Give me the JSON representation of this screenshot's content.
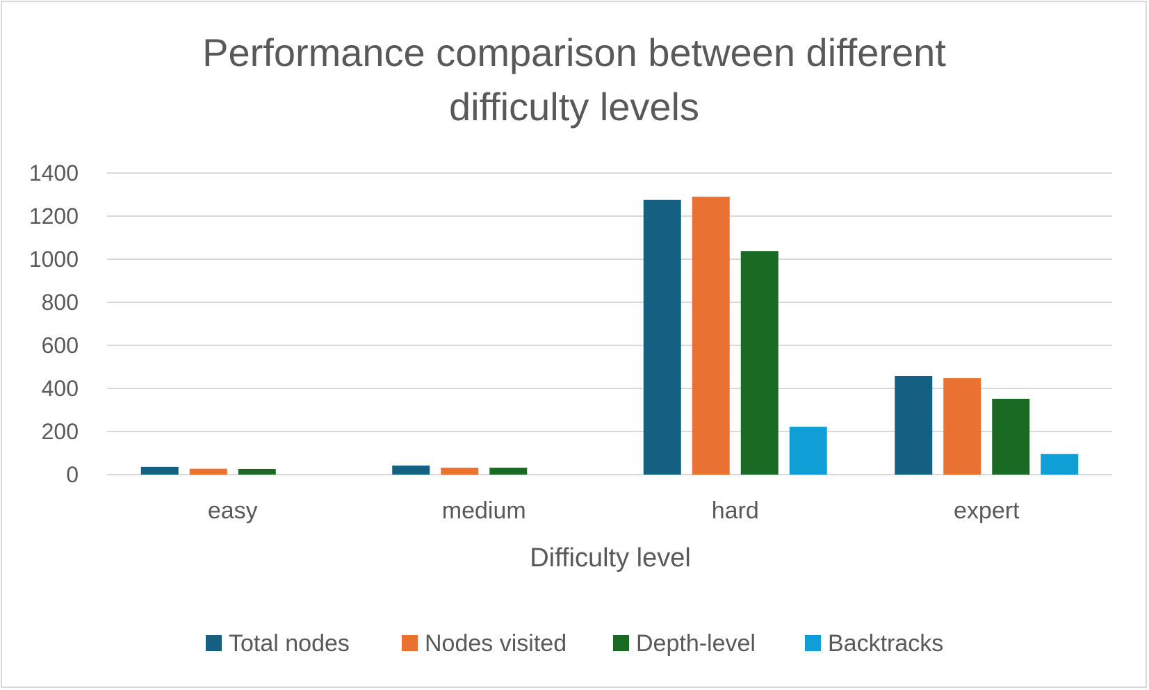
{
  "chart_data": {
    "type": "bar",
    "title_lines": [
      "Performance comparison between different",
      "difficulty levels"
    ],
    "xlabel": "Difficulty level",
    "ylabel": "",
    "categories": [
      "easy",
      "medium",
      "hard",
      "expert"
    ],
    "ylim": [
      0,
      1400
    ],
    "yticks": [
      0,
      200,
      400,
      600,
      800,
      1000,
      1200,
      1400
    ],
    "grid": true,
    "legend_position": "bottom",
    "series": [
      {
        "name": "Total nodes",
        "color": "#156082",
        "values": [
          36,
          42,
          1275,
          458
        ]
      },
      {
        "name": "Nodes visited",
        "color": "#E97132",
        "values": [
          27,
          32,
          1290,
          448
        ]
      },
      {
        "name": "Depth-level",
        "color": "#196B24",
        "values": [
          26,
          32,
          1038,
          352
        ]
      },
      {
        "name": "Backtracks",
        "color": "#0F9ED5",
        "values": [
          0,
          0,
          222,
          96
        ]
      }
    ]
  }
}
